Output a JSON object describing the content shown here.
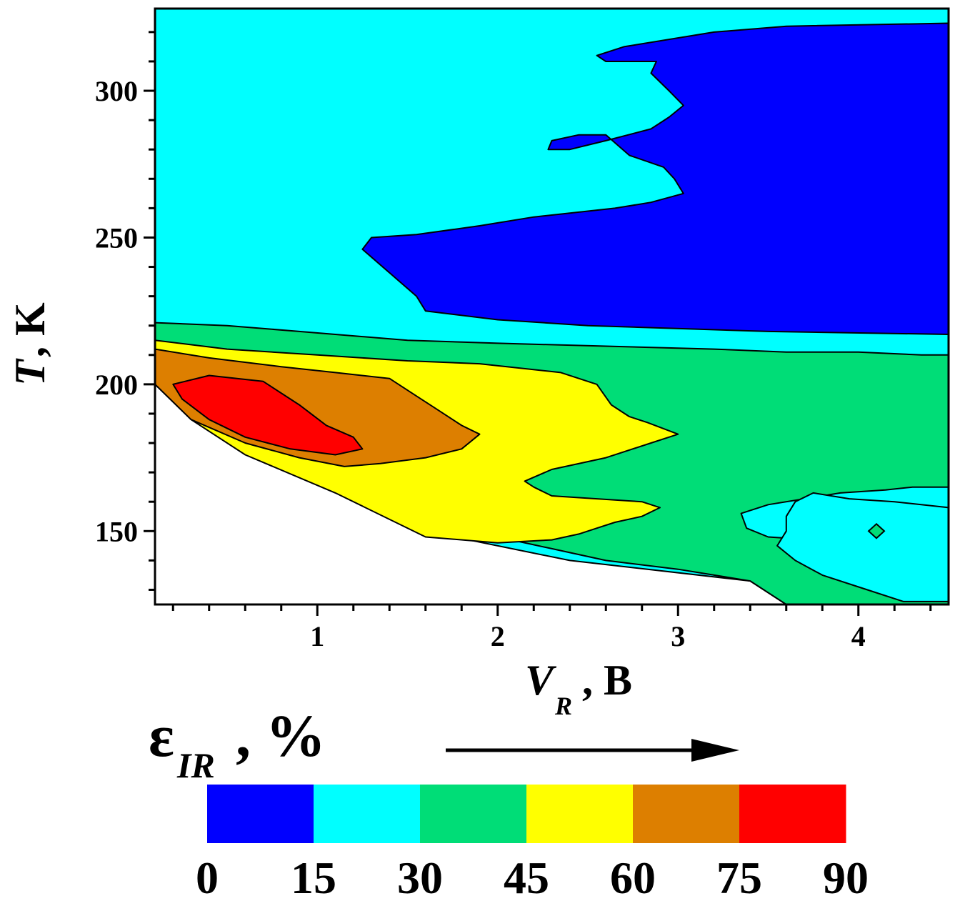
{
  "chart_data": {
    "type": "contour",
    "xlabel_main": "V",
    "xlabel_sub": "R",
    "xlabel_unit": ", B",
    "ylabel_main": "T",
    "ylabel_unit": ", K",
    "xlim": [
      0.1,
      4.5
    ],
    "ylim": [
      125,
      328
    ],
    "x_ticks": [
      1,
      2,
      3,
      4
    ],
    "y_ticks": [
      150,
      200,
      250,
      300
    ],
    "legend_title_main": "ε",
    "legend_title_sub": "IR",
    "legend_title_unit": ", %",
    "legend_levels": [
      0,
      15,
      30,
      45,
      60,
      75,
      90
    ],
    "legend_colors": [
      "#0000ff",
      "#00ffff",
      "#00dd77",
      "#ffff00",
      "#dd7f00",
      "#ff0000"
    ],
    "band_color_names": [
      "blue",
      "cyan",
      "green",
      "yellow",
      "orange",
      "red"
    ],
    "regions": [
      {
        "band": "15-30",
        "color": "#00ffff",
        "points": [
          [
            0.1,
            328
          ],
          [
            4.5,
            328
          ],
          [
            4.5,
            125
          ],
          [
            3.6,
            125
          ],
          [
            3.4,
            133
          ],
          [
            2.4,
            140
          ],
          [
            1.6,
            150
          ],
          [
            1.1,
            170
          ],
          [
            0.6,
            182
          ],
          [
            0.1,
            200
          ]
        ]
      },
      {
        "band": "0-15",
        "color": "#0000ff",
        "points": [
          [
            1.25,
            246
          ],
          [
            1.3,
            250
          ],
          [
            1.55,
            251
          ],
          [
            1.9,
            254
          ],
          [
            2.2,
            257
          ],
          [
            2.65,
            260
          ],
          [
            2.85,
            262
          ],
          [
            3.03,
            265
          ],
          [
            2.98,
            270
          ],
          [
            2.92,
            274
          ],
          [
            2.73,
            278
          ],
          [
            2.6,
            285
          ],
          [
            2.45,
            285
          ],
          [
            2.3,
            283
          ],
          [
            2.28,
            280
          ],
          [
            2.4,
            280
          ],
          [
            2.6,
            283
          ],
          [
            2.85,
            287
          ],
          [
            2.95,
            291
          ],
          [
            3.03,
            295
          ],
          [
            2.95,
            300
          ],
          [
            2.85,
            306
          ],
          [
            2.88,
            310
          ],
          [
            2.75,
            310
          ],
          [
            2.6,
            310
          ],
          [
            2.55,
            312
          ],
          [
            2.7,
            315
          ],
          [
            3.2,
            320
          ],
          [
            3.6,
            322
          ],
          [
            4.5,
            323
          ],
          [
            4.5,
            217
          ],
          [
            3.5,
            218
          ],
          [
            2.5,
            220
          ],
          [
            2.0,
            222
          ],
          [
            1.6,
            225
          ],
          [
            1.55,
            230
          ],
          [
            1.4,
            238
          ]
        ]
      },
      {
        "band": "30-45",
        "color": "#00dd77",
        "points": [
          [
            0.1,
            221
          ],
          [
            0.5,
            220
          ],
          [
            0.9,
            218
          ],
          [
            1.5,
            215
          ],
          [
            2.0,
            214
          ],
          [
            2.6,
            213
          ],
          [
            3.2,
            212
          ],
          [
            3.6,
            211
          ],
          [
            4.0,
            211
          ],
          [
            4.35,
            210
          ],
          [
            4.5,
            210
          ],
          [
            4.5,
            165
          ],
          [
            4.3,
            165
          ],
          [
            4.15,
            164
          ],
          [
            3.9,
            163
          ],
          [
            3.7,
            161
          ],
          [
            3.5,
            159
          ],
          [
            3.35,
            156
          ],
          [
            3.38,
            151
          ],
          [
            3.5,
            148
          ],
          [
            3.75,
            147
          ],
          [
            3.85,
            148
          ],
          [
            3.92,
            150
          ],
          [
            4.1,
            150
          ],
          [
            4.25,
            145
          ],
          [
            4.4,
            140
          ],
          [
            4.5,
            138
          ],
          [
            4.5,
            125
          ],
          [
            3.6,
            125
          ],
          [
            3.4,
            133
          ],
          [
            3.0,
            137
          ],
          [
            2.6,
            140
          ],
          [
            2.3,
            144
          ],
          [
            2.0,
            148
          ],
          [
            1.6,
            151
          ],
          [
            1.2,
            163
          ],
          [
            0.8,
            176
          ],
          [
            0.5,
            183
          ],
          [
            0.3,
            190
          ],
          [
            0.1,
            200
          ]
        ]
      },
      {
        "band": "30-45 (inner cyan)",
        "color": "#00ffff",
        "points": [
          [
            3.75,
            163
          ],
          [
            3.95,
            161
          ],
          [
            4.2,
            160
          ],
          [
            4.5,
            158
          ],
          [
            4.5,
            126
          ],
          [
            4.25,
            126
          ],
          [
            4.05,
            130
          ],
          [
            3.8,
            135
          ],
          [
            3.65,
            140
          ],
          [
            3.55,
            145
          ],
          [
            3.6,
            150
          ],
          [
            3.6,
            155
          ],
          [
            3.65,
            160
          ]
        ]
      },
      {
        "band": "45-60",
        "color": "#ffff00",
        "points": [
          [
            0.1,
            215
          ],
          [
            0.5,
            212
          ],
          [
            1.0,
            210
          ],
          [
            1.5,
            208
          ],
          [
            1.9,
            207
          ],
          [
            2.35,
            204
          ],
          [
            2.55,
            200
          ],
          [
            2.63,
            193
          ],
          [
            2.73,
            189
          ],
          [
            2.83,
            187
          ],
          [
            3.0,
            183
          ],
          [
            2.85,
            180
          ],
          [
            2.6,
            175
          ],
          [
            2.3,
            171
          ],
          [
            2.15,
            167
          ],
          [
            2.2,
            165
          ],
          [
            2.3,
            162
          ],
          [
            2.55,
            161
          ],
          [
            2.8,
            160
          ],
          [
            2.9,
            158
          ],
          [
            2.8,
            155
          ],
          [
            2.65,
            153
          ],
          [
            2.55,
            151
          ],
          [
            2.5,
            150
          ],
          [
            2.45,
            149
          ],
          [
            2.3,
            147
          ],
          [
            2.0,
            146
          ],
          [
            1.6,
            148
          ],
          [
            1.1,
            163
          ],
          [
            0.6,
            176
          ],
          [
            0.3,
            188
          ],
          [
            0.1,
            200
          ]
        ]
      },
      {
        "band": "60-75",
        "color": "#dd7f00",
        "points": [
          [
            0.1,
            212
          ],
          [
            0.4,
            209
          ],
          [
            0.8,
            206
          ],
          [
            1.1,
            204
          ],
          [
            1.4,
            202
          ],
          [
            1.55,
            196
          ],
          [
            1.65,
            192
          ],
          [
            1.8,
            186
          ],
          [
            1.9,
            183
          ],
          [
            1.8,
            178
          ],
          [
            1.6,
            175
          ],
          [
            1.35,
            173
          ],
          [
            1.15,
            172
          ],
          [
            0.9,
            175
          ],
          [
            0.6,
            180
          ],
          [
            0.3,
            188
          ],
          [
            0.1,
            200
          ]
        ]
      },
      {
        "band": "75-90",
        "color": "#ff0000",
        "points": [
          [
            0.2,
            200
          ],
          [
            0.4,
            203
          ],
          [
            0.7,
            201
          ],
          [
            0.9,
            193
          ],
          [
            1.05,
            186
          ],
          [
            1.2,
            182
          ],
          [
            1.25,
            178
          ],
          [
            1.1,
            176
          ],
          [
            0.85,
            178
          ],
          [
            0.6,
            182
          ],
          [
            0.4,
            188
          ],
          [
            0.25,
            195
          ]
        ]
      }
    ]
  }
}
